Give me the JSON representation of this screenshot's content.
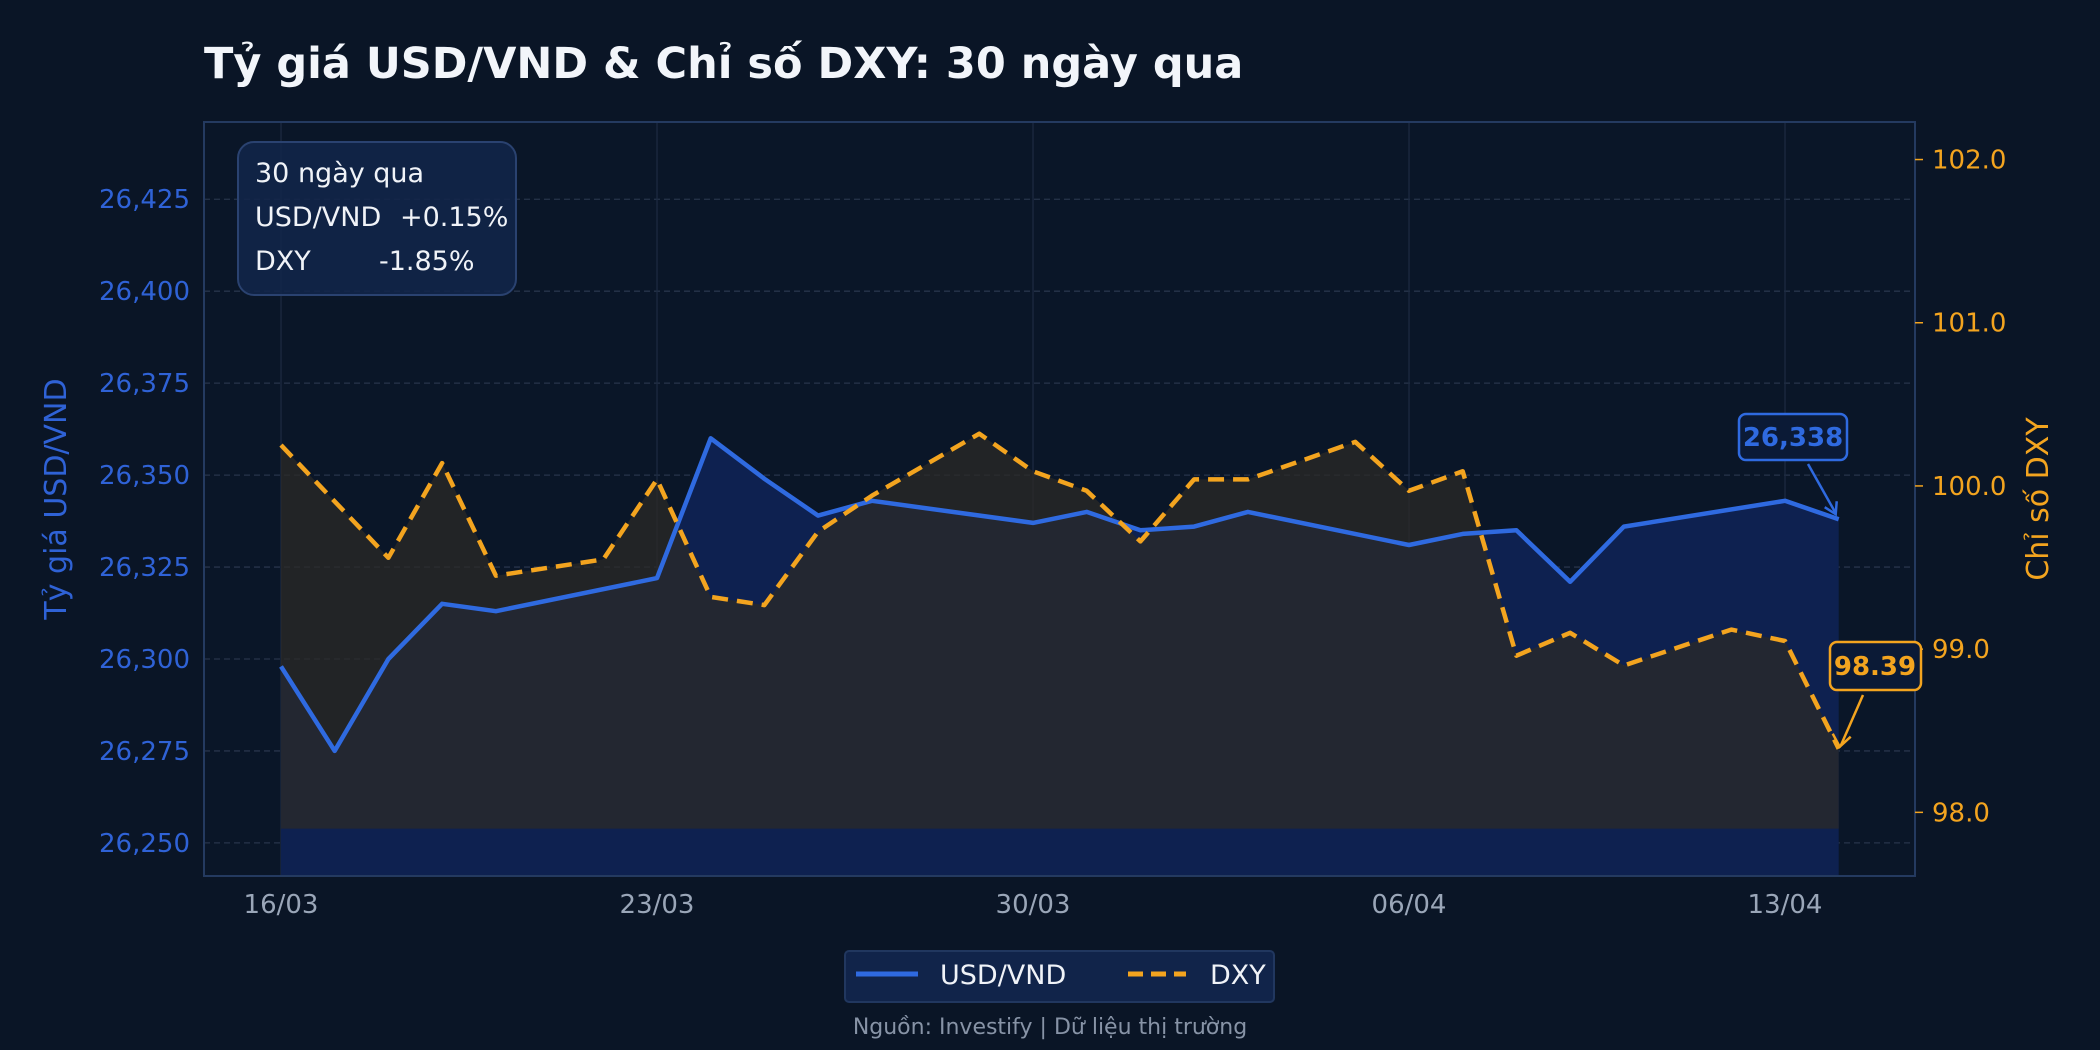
{
  "chart_data": {
    "type": "line",
    "title": "Tỷ giá USD/VND & Chỉ số DXY: 30 ngày qua",
    "ylabel_left": "Tỷ giá USD/VND",
    "ylabel_right": "Chỉ số DXY",
    "x_ticks": [
      "16/03",
      "23/03",
      "30/03",
      "06/04",
      "13/04"
    ],
    "ylim_left": [
      26241,
      26446
    ],
    "ylim_right": [
      97.61,
      102.23
    ],
    "y_ticks_left": [
      "26,250",
      "26,275",
      "26,300",
      "26,325",
      "26,350",
      "26,375",
      "26,400",
      "26,425"
    ],
    "y_ticks_left_values": [
      26250,
      26275,
      26300,
      26325,
      26350,
      26375,
      26400,
      26425
    ],
    "y_ticks_right": [
      "98.0",
      "99.0",
      "100.0",
      "101.0",
      "102.0"
    ],
    "y_ticks_right_values": [
      98,
      99,
      100,
      101,
      102
    ],
    "grid": true,
    "legend_placement": "bottom-center",
    "series": [
      {
        "name": "USD/VND",
        "axis": "left",
        "color": "#2f6ae0",
        "style": "solid",
        "points": [
          [
            "16/03",
            26298
          ],
          [
            "17/03",
            26275
          ],
          [
            "18/03",
            26300
          ],
          [
            "19/03",
            26315
          ],
          [
            "20/03",
            26313
          ],
          [
            "23/03",
            26322
          ],
          [
            "24/03",
            26360
          ],
          [
            "25/03",
            26349
          ],
          [
            "26/03",
            26339
          ],
          [
            "27/03",
            26343
          ],
          [
            "30/03",
            26337
          ],
          [
            "31/03",
            26340
          ],
          [
            "01/04",
            26335
          ],
          [
            "02/04",
            26336
          ],
          [
            "03/04",
            26340
          ],
          [
            "06/04",
            26331
          ],
          [
            "07/04",
            26334
          ],
          [
            "08/04",
            26335
          ],
          [
            "09/04",
            26321
          ],
          [
            "10/04",
            26336
          ],
          [
            "13/04",
            26343
          ],
          [
            "14/04",
            26338
          ]
        ]
      },
      {
        "name": "DXY",
        "axis": "right",
        "color": "#f3a41f",
        "style": "dashed",
        "points": [
          [
            "16/03",
            100.25
          ],
          [
            "18/03",
            99.56
          ],
          [
            "19/03",
            100.14
          ],
          [
            "20/03",
            99.45
          ],
          [
            "22/03",
            99.55
          ],
          [
            "23/03",
            100.04
          ],
          [
            "24/03",
            99.32
          ],
          [
            "25/03",
            99.27
          ],
          [
            "26/03",
            99.72
          ],
          [
            "27/03",
            99.94
          ],
          [
            "29/03",
            100.32
          ],
          [
            "30/03",
            100.09
          ],
          [
            "31/03",
            99.97
          ],
          [
            "01/04",
            99.66
          ],
          [
            "02/04",
            100.04
          ],
          [
            "03/04",
            100.04
          ],
          [
            "05/04",
            100.27
          ],
          [
            "06/04",
            99.97
          ],
          [
            "07/04",
            100.09
          ],
          [
            "08/04",
            98.96
          ],
          [
            "09/04",
            99.1
          ],
          [
            "10/04",
            98.9
          ],
          [
            "12/04",
            99.12
          ],
          [
            "13/04",
            99.05
          ],
          [
            "14/04",
            98.39
          ]
        ]
      }
    ],
    "annotations": [
      {
        "series": "USD/VND",
        "label": "26,338",
        "date": "14/04"
      },
      {
        "series": "DXY",
        "label": "98.39",
        "date": "14/04"
      }
    ]
  },
  "info_box": {
    "period": "30 ngày qua",
    "usd_label": "USD/VND",
    "usd_change": "+0.15%",
    "dxy_label": "DXY",
    "dxy_change": "-1.85%"
  },
  "legend": {
    "usd": "USD/VND",
    "dxy": "DXY"
  },
  "source": "Nguồn: Investify | Dữ liệu thị trường",
  "colors": {
    "background": "#0a1526",
    "usd": "#2f6ae0",
    "dxy": "#f3a41f",
    "text": "#f2f5fa"
  }
}
